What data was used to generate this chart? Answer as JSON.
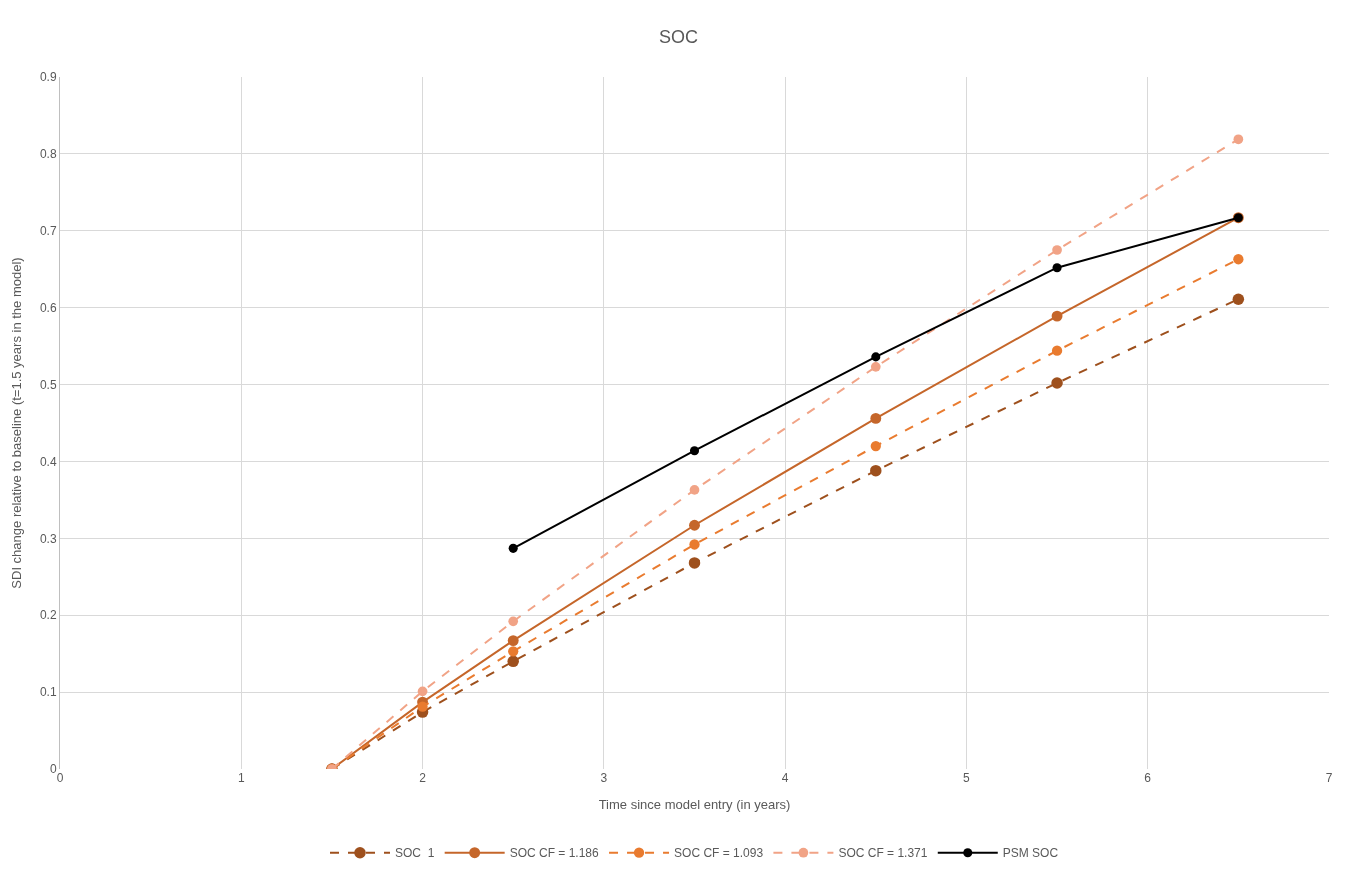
{
  "chart_data": {
    "type": "line",
    "title": "SOC",
    "xlabel": "Time since model entry (in years)",
    "ylabel": "SDI change relative to baseline (t=1.5 years in the model)",
    "x": [
      1.5,
      2,
      2.5,
      3.5,
      4.5,
      5.5,
      6.5
    ],
    "series": [
      {
        "name": "SOC  1",
        "color": "#9e501d",
        "line_style": "dashed",
        "values": [
          0,
          0.074,
          0.14,
          0.268,
          0.388,
          0.502,
          0.611
        ]
      },
      {
        "name": "SOC CF = 1.186",
        "color": "#c5662a",
        "line_style": "solid",
        "values": [
          0,
          0.087,
          0.167,
          0.317,
          0.456,
          0.589,
          0.717
        ]
      },
      {
        "name": "SOC CF = 1.093",
        "color": "#e97b2f",
        "line_style": "dashed",
        "values": [
          0,
          0.081,
          0.153,
          0.292,
          0.42,
          0.544,
          0.663
        ]
      },
      {
        "name": "SOC CF = 1.371",
        "color": "#f1a386",
        "line_style": "dashed",
        "values": [
          0,
          0.101,
          0.192,
          0.363,
          0.523,
          0.675,
          0.819
        ]
      },
      {
        "name": "PSM SOC",
        "color": "#000000",
        "line_style": "solid",
        "x": [
          2.5,
          3.5,
          4.5,
          5.5,
          6.5
        ],
        "values": [
          0.287,
          0.414,
          0.536,
          0.652,
          0.717
        ]
      }
    ],
    "xlim": [
      0,
      7
    ],
    "xticks": [
      0,
      1,
      2,
      3,
      4,
      5,
      6,
      7
    ],
    "ylim": [
      0,
      0.9
    ],
    "yticks": [
      0,
      0.1,
      0.2,
      0.3,
      0.4,
      0.5,
      0.6,
      0.7,
      0.8,
      0.9
    ],
    "grid": true,
    "legend": "bottom",
    "marker": "circle"
  }
}
